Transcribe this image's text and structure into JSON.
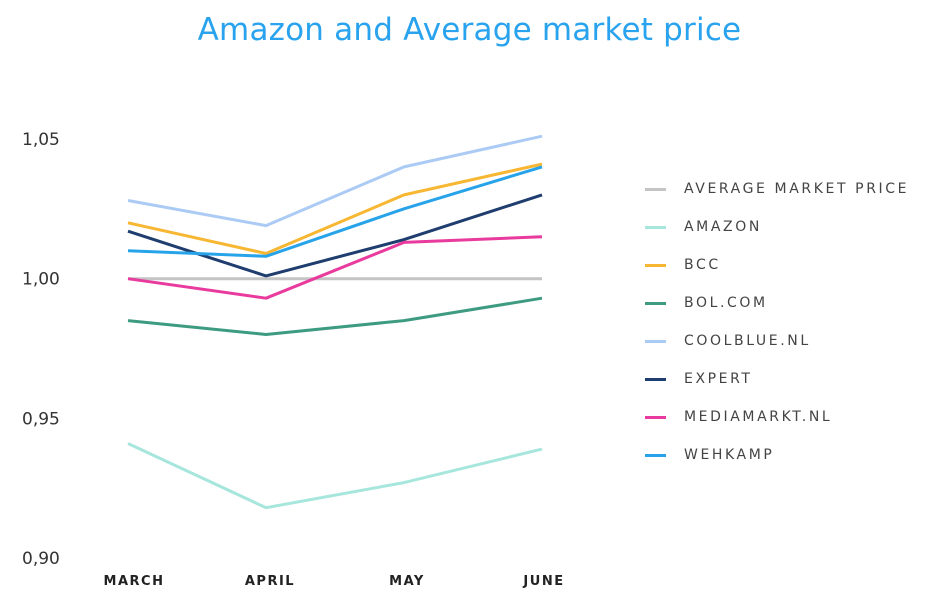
{
  "chart_data": {
    "type": "line",
    "title": "Amazon and Average market price",
    "xlabel": "",
    "ylabel": "",
    "categories": [
      "MARCH",
      "APRIL",
      "MAY",
      "JUNE"
    ],
    "ylim": [
      0.9,
      1.05
    ],
    "yticks": [
      {
        "value": 0.9,
        "label": "0,90"
      },
      {
        "value": 0.95,
        "label": "0,95"
      },
      {
        "value": 1.0,
        "label": "1,00"
      },
      {
        "value": 1.05,
        "label": "1,05"
      }
    ],
    "grid": false,
    "legend_position": "right",
    "series": [
      {
        "name": "AVERAGE MARKET PRICE",
        "color": "#c4c4c4",
        "values": [
          1.0,
          1.0,
          1.0,
          1.0
        ]
      },
      {
        "name": "AMAZON",
        "color": "#a6e6dc",
        "values": [
          0.941,
          0.918,
          0.927,
          0.939
        ]
      },
      {
        "name": "BCC",
        "color": "#f7b733",
        "values": [
          1.02,
          1.009,
          1.03,
          1.041
        ]
      },
      {
        "name": "BOL.COM",
        "color": "#3d9b82",
        "values": [
          0.985,
          0.98,
          0.985,
          0.993
        ]
      },
      {
        "name": "COOLBLUE.NL",
        "color": "#abcbf5",
        "values": [
          1.028,
          1.019,
          1.04,
          1.051
        ]
      },
      {
        "name": "EXPERT",
        "color": "#1f3d6e",
        "values": [
          1.017,
          1.001,
          1.014,
          1.03
        ]
      },
      {
        "name": "MEDIAMARKT.NL",
        "color": "#e93a9e",
        "values": [
          1.0,
          0.993,
          1.013,
          1.015
        ]
      },
      {
        "name": "WEHKAMP",
        "color": "#27a3ea",
        "values": [
          1.01,
          1.008,
          1.025,
          1.04
        ]
      }
    ]
  }
}
